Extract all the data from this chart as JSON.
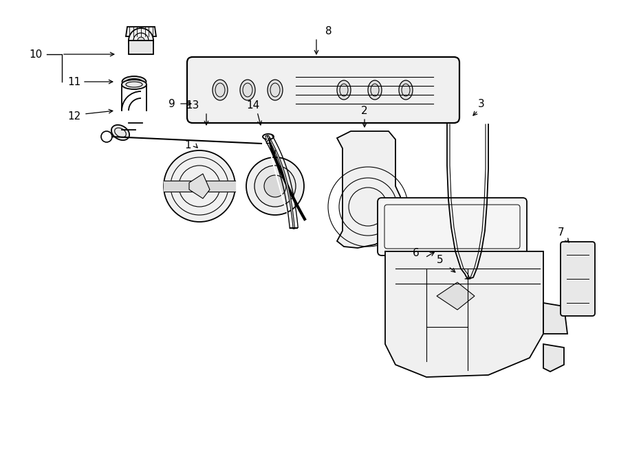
{
  "bg_color": "#ffffff",
  "line_color": "#000000",
  "label_color": "#000000",
  "figsize": [
    9.0,
    6.61
  ],
  "dpi": 100
}
